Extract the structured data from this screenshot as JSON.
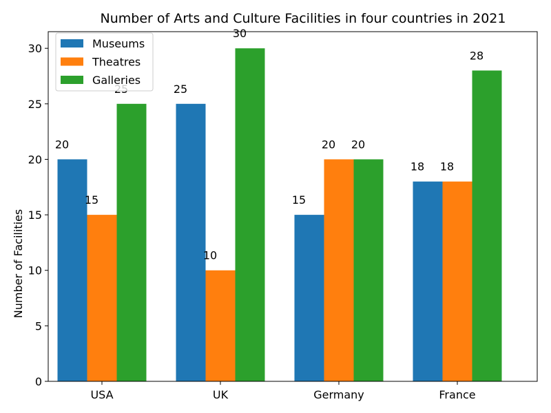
{
  "chart_data": {
    "type": "bar",
    "title": "Number of Arts and Culture Facilities in four countries in 2021",
    "xlabel": "",
    "ylabel": "Number of Facilities",
    "categories": [
      "USA",
      "UK",
      "Germany",
      "France"
    ],
    "series": [
      {
        "name": "Museums",
        "values": [
          20,
          25,
          15,
          18
        ],
        "color": "#1f77b4"
      },
      {
        "name": "Theatres",
        "values": [
          15,
          10,
          20,
          18
        ],
        "color": "#ff7f0e"
      },
      {
        "name": "Galleries",
        "values": [
          25,
          30,
          20,
          28
        ],
        "color": "#2ca02c"
      }
    ],
    "ylim": [
      0,
      31.5
    ],
    "yticks": [
      0,
      5,
      10,
      15,
      20,
      25,
      30
    ],
    "legend_position": "top-left",
    "grid": false
  }
}
